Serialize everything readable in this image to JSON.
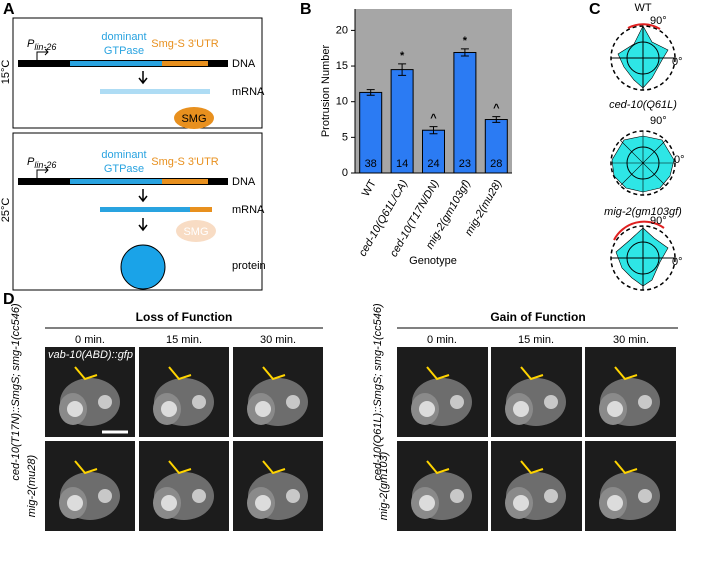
{
  "panel_a": {
    "label": "A",
    "rows": [
      {
        "temperature": "15°C",
        "promoter": "P",
        "promoter_subscript": "lin-26",
        "gene_line1": "dominant",
        "gene_line2": "GTPase",
        "utr": "Smg-S 3'UTR",
        "dna": "DNA",
        "mrna": "mRNA",
        "smg": "SMG"
      },
      {
        "temperature": "25°C",
        "promoter": "P",
        "promoter_subscript": "lin-26",
        "gene_line1": "dominant",
        "gene_line2": "GTPase",
        "utr": "Smg-S 3'UTR",
        "dna": "DNA",
        "mrna": "mRNA",
        "smg": "SMG",
        "protein": "protein"
      }
    ]
  },
  "chart_data": {
    "type": "bar",
    "panel_label": "B",
    "ylabel": "Protrusion Number",
    "xlabel": "Genotype",
    "categories": [
      "WT",
      "ced-10(Q61L/CA)",
      "ced-10(T17N/DN)",
      "mig-2(gm103gf)",
      "mig-2(mu28)"
    ],
    "values": [
      11.3,
      14.5,
      6.0,
      16.9,
      7.5
    ],
    "errors": [
      0.4,
      0.8,
      0.5,
      0.5,
      0.4
    ],
    "sample_sizes": [
      38,
      14,
      24,
      23,
      28
    ],
    "annotations": [
      "",
      "*",
      "^",
      "*",
      "^"
    ],
    "ylim": [
      0,
      23
    ],
    "yticks": [
      0,
      5,
      10,
      15,
      20
    ],
    "color": "#2b7bf3",
    "background": "#a6a6a6"
  },
  "panel_c": {
    "label": "C",
    "plots": [
      {
        "title": "WT",
        "angle_90": "90°",
        "angle_0": "0°"
      },
      {
        "title": "ced-10(Q61L)",
        "angle_90": "90°",
        "angle_0": "0°"
      },
      {
        "title": "mig-2(gm103gf)",
        "angle_90": "90°",
        "angle_0": "0°"
      }
    ]
  },
  "panel_d": {
    "label": "D",
    "marker": "vab-10(ABD)::gfp",
    "groups": [
      {
        "title": "Loss of Function",
        "times": [
          "0 min.",
          "15 min.",
          "30 min."
        ],
        "rows": [
          "ced-10(T17N)::SmgS; smg-1(cc546)",
          "mig-2(mu28)"
        ]
      },
      {
        "title": "Gain of Function",
        "times": [
          "0 min.",
          "15 min.",
          "30 min."
        ],
        "rows": [
          "ced-10(Q61L)::SmgS; smg-1(cc546)",
          "mig-2(gm103)"
        ]
      }
    ]
  }
}
